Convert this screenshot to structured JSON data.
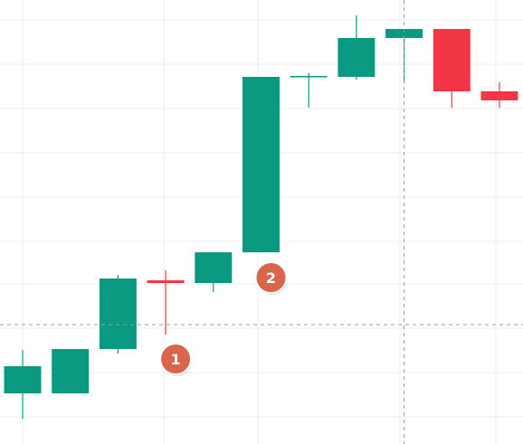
{
  "chart_data": {
    "type": "candlestick",
    "title": "",
    "xlabel": "",
    "ylabel": "",
    "ylim": [
      0,
      491
    ],
    "grid": true,
    "colors": {
      "up": "#0a9981",
      "down": "#f23645",
      "grid": "#eeeeee",
      "crosshair": "#9a9a9a",
      "marker_fill": "#d9654a",
      "marker_stroke": "#ffffff",
      "marker_text": "#ffffff"
    },
    "candles": [
      {
        "open": 56,
        "high": 104,
        "low": 28,
        "close": 86
      },
      {
        "open": 56,
        "high": 105,
        "low": 56,
        "close": 105
      },
      {
        "open": 105,
        "high": 187,
        "low": 100,
        "close": 183
      },
      {
        "open": 181,
        "high": 192,
        "low": 121,
        "close": 178
      },
      {
        "open": 178,
        "high": 212,
        "low": 168,
        "close": 212
      },
      {
        "open": 212,
        "high": 406,
        "low": 212,
        "close": 406
      },
      {
        "open": 406,
        "high": 410,
        "low": 372,
        "close": 407
      },
      {
        "open": 406,
        "high": 474,
        "low": 403,
        "close": 449
      },
      {
        "open": 449,
        "high": 459,
        "low": 399,
        "close": 459
      },
      {
        "open": 459,
        "high": 459,
        "low": 372,
        "close": 390
      },
      {
        "open": 390,
        "high": 400,
        "low": 372,
        "close": 380
      }
    ],
    "crosshair": {
      "candle_index": 8,
      "y": 132
    },
    "markers": [
      {
        "label": "1",
        "candle_index": 3,
        "y": 94
      },
      {
        "label": "2",
        "candle_index": 5,
        "y": 184
      }
    ]
  }
}
